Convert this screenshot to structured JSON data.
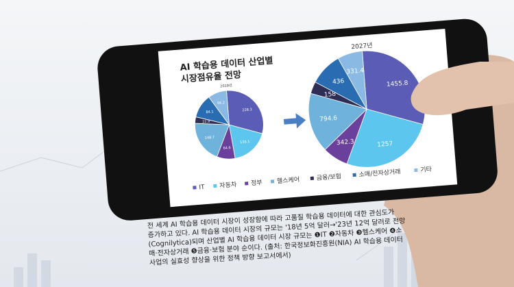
{
  "chart_data": [
    {
      "type": "pie",
      "title": "2019년",
      "values": [
        228.3,
        135.1,
        64.6,
        148.7,
        22.9,
        84.1,
        66.2
      ]
    },
    {
      "type": "pie",
      "title": "2027년",
      "values": [
        1455.8,
        1257,
        342.3,
        794.6,
        158,
        436,
        331.4
      ]
    }
  ],
  "title": [
    "AI 학습용 데이터 산업별",
    "시장점유율 전망"
  ],
  "legend": {
    "categories": [
      "IT",
      "자동차",
      "정부",
      "헬스케어",
      "금융/보험",
      "소매/전자상거래",
      "기타"
    ],
    "colors": [
      "#5a5cb5",
      "#5cc6ef",
      "#6b3f9c",
      "#6fb3dc",
      "#2e2d55",
      "#2a6cb2",
      "#8ab9e4"
    ]
  },
  "caption": [
    "전 세계 AI 학습용 데이터 시장이 성장함에 따라 고품질 학습용 데이터에 대한 관심도가",
    "증가하고 있다. AI 학습용 데이터 시장의 규모는 '18년 5억 달러→'23년 12억 달러로 전망",
    "(Cognilytica)되며 산업별 AI 학습용 데이터 시장 규모는 ❶IT ❷자동차 ❸헬스케어 ❹소",
    "매·전자상거래 ❺금융·보험 분야 순이다. (출처: 한국정보화진흥원(NIA) AI 학습용 데이터",
    "사업의 실효성 향상을 위한 정책 방향 보고서에서)"
  ]
}
